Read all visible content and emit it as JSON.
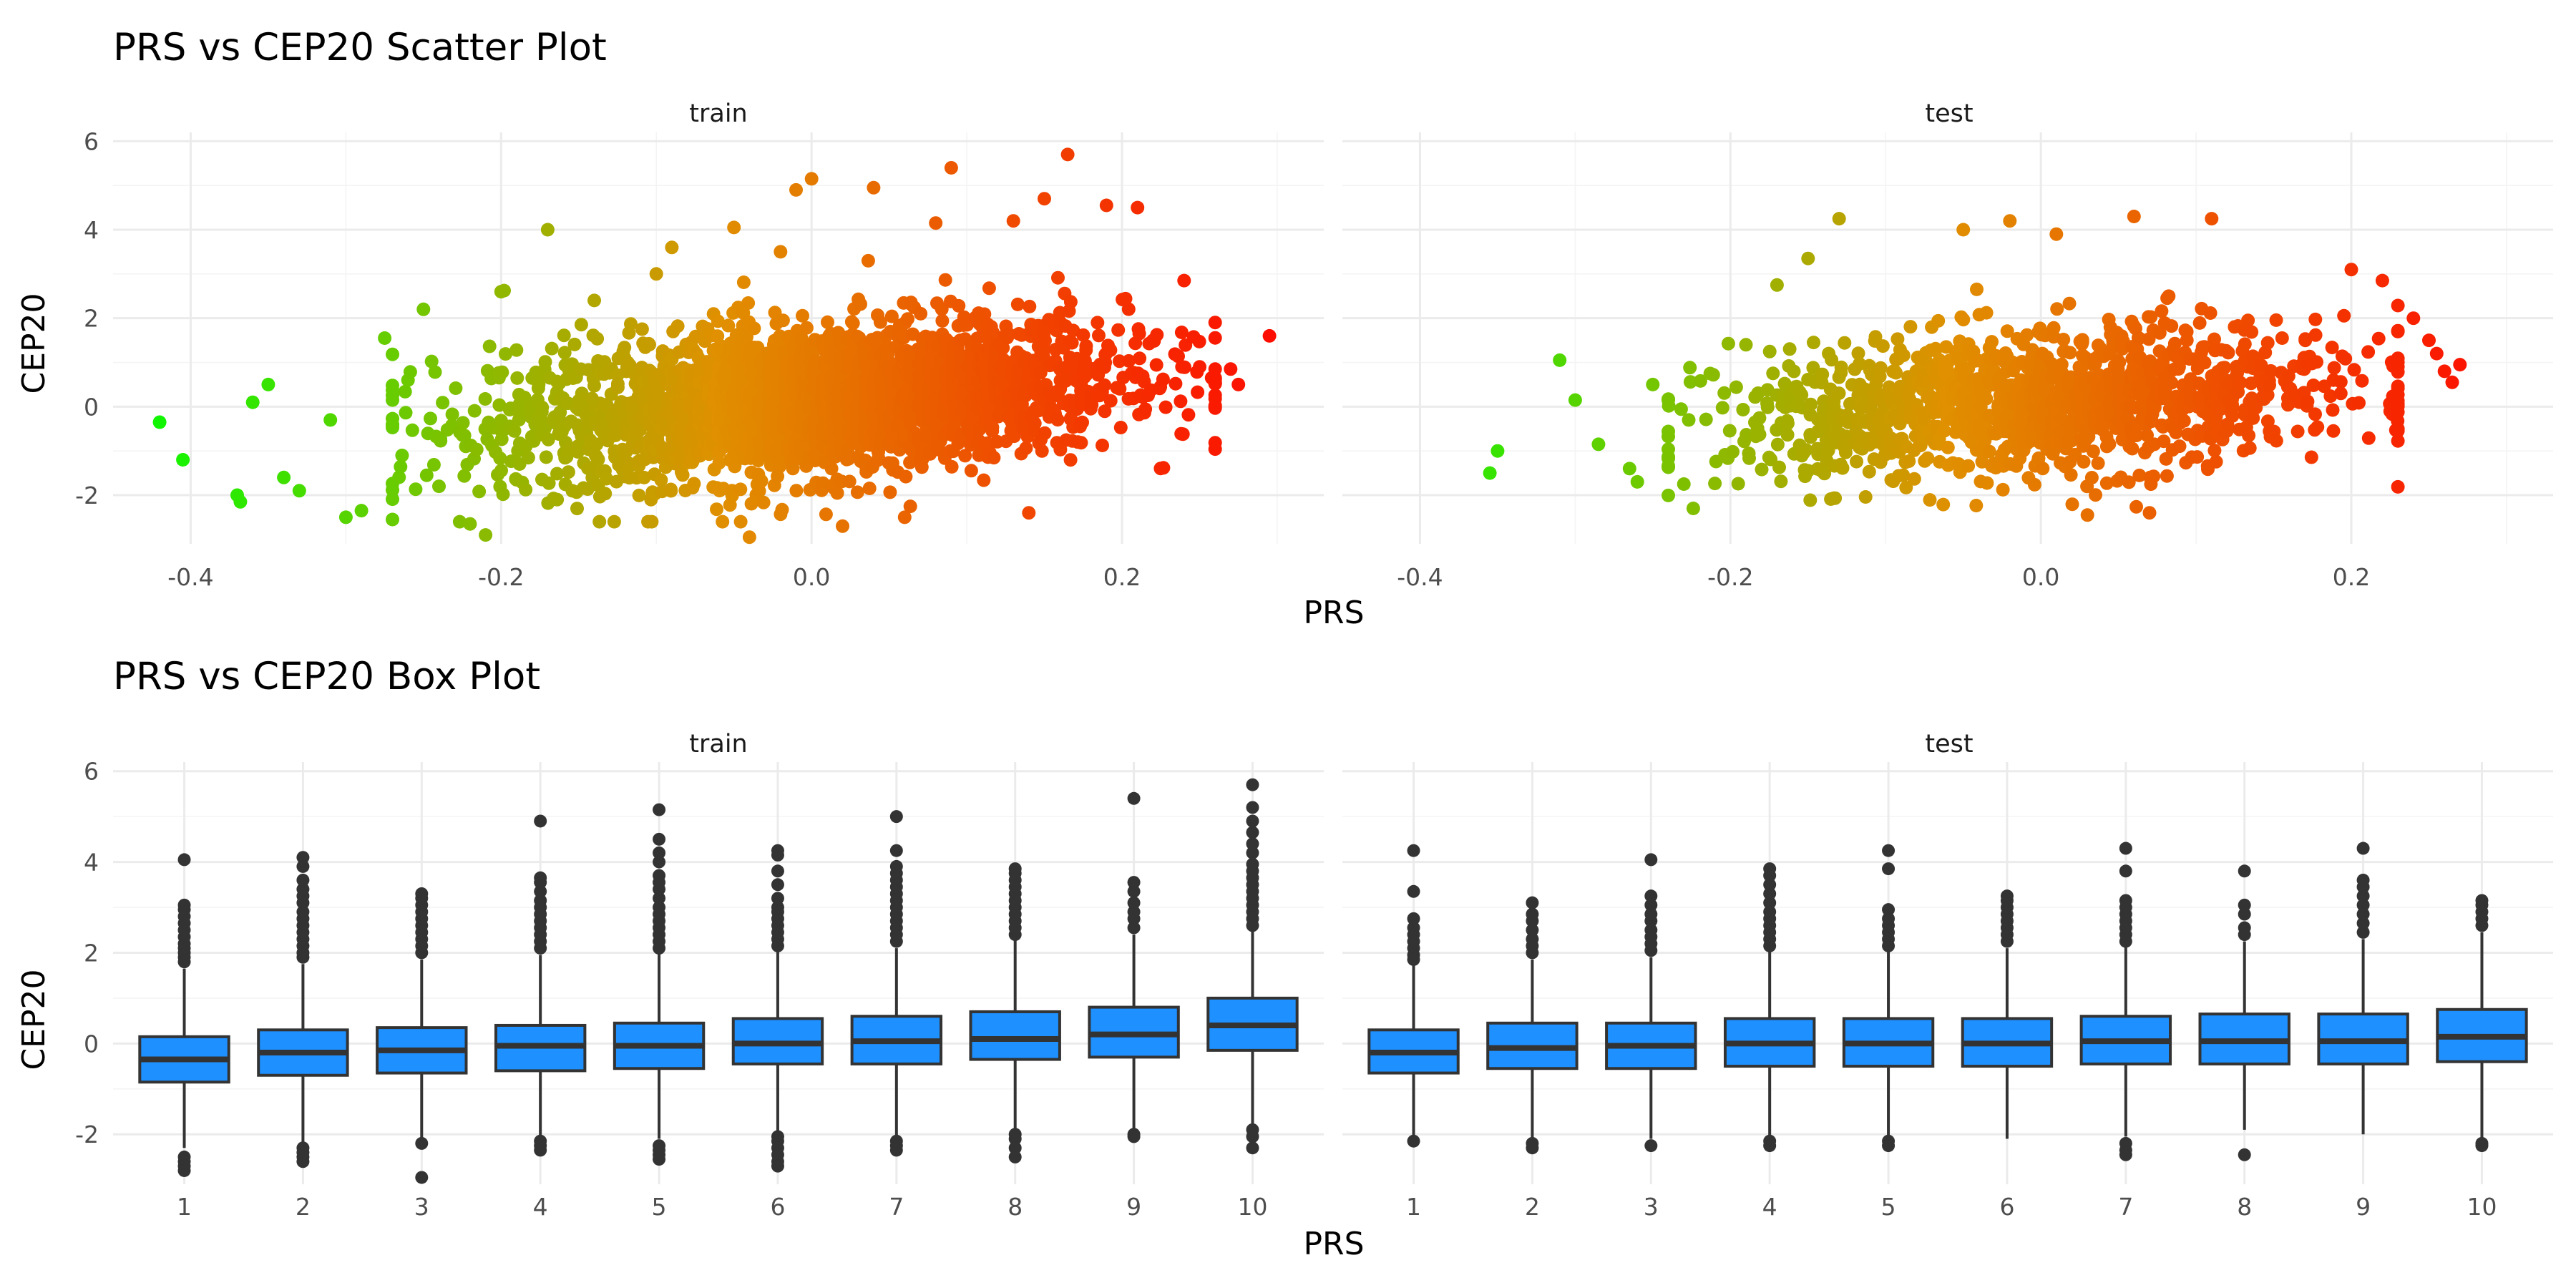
{
  "chart_data": [
    {
      "type": "scatter",
      "title": "PRS vs CEP20 Scatter Plot",
      "xlabel": "PRS",
      "ylabel": "CEP20",
      "xlim": [
        -0.45,
        0.33
      ],
      "ylim": [
        -3.1,
        6.2
      ],
      "x_ticks": [
        "-0.4",
        "-0.2",
        "0.0",
        "0.2"
      ],
      "x_tick_values": [
        -0.4,
        -0.2,
        0.0,
        0.2
      ],
      "y_ticks": [
        "-2",
        "0",
        "2",
        "4",
        "6"
      ],
      "y_tick_values": [
        -2,
        0,
        2,
        4,
        6
      ],
      "grid": true,
      "color_scale": {
        "variable": "PRS",
        "low": "#00ff00",
        "mid": "#e09000",
        "high": "#ff0000"
      },
      "facets": [
        {
          "label": "train",
          "cloud": {
            "n": 2600,
            "x_mean": 0.0,
            "x_sd": 0.1,
            "x_min": -0.27,
            "x_max": 0.26,
            "y_intercept": 0.15,
            "y_slope": 2.8,
            "y_sd": 0.85,
            "y_min": -2.6,
            "y_max": 3.8
          },
          "points": [
            [
              -0.42,
              -0.35
            ],
            [
              -0.405,
              -1.2
            ],
            [
              -0.37,
              -2.0
            ],
            [
              -0.368,
              -2.15
            ],
            [
              -0.36,
              0.1
            ],
            [
              -0.35,
              0.5
            ],
            [
              -0.34,
              -1.6
            ],
            [
              -0.33,
              -1.9
            ],
            [
              -0.31,
              -0.3
            ],
            [
              -0.3,
              -2.5
            ],
            [
              -0.29,
              -2.35
            ],
            [
              -0.275,
              1.55
            ],
            [
              -0.27,
              -2.55
            ],
            [
              -0.26,
              0.6
            ],
            [
              -0.25,
              2.2
            ],
            [
              -0.24,
              -1.8
            ],
            [
              -0.22,
              -2.65
            ],
            [
              -0.21,
              -2.9
            ],
            [
              -0.2,
              2.6
            ],
            [
              -0.17,
              4.0
            ],
            [
              -0.14,
              2.4
            ],
            [
              -0.1,
              3.0
            ],
            [
              -0.09,
              3.6
            ],
            [
              -0.05,
              4.05
            ],
            [
              -0.04,
              -2.95
            ],
            [
              -0.02,
              3.5
            ],
            [
              -0.01,
              4.9
            ],
            [
              0.0,
              5.15
            ],
            [
              0.02,
              -2.7
            ],
            [
              0.04,
              4.95
            ],
            [
              0.06,
              -2.5
            ],
            [
              0.08,
              4.15
            ],
            [
              0.09,
              5.4
            ],
            [
              0.13,
              4.2
            ],
            [
              0.14,
              -2.4
            ],
            [
              0.15,
              4.7
            ],
            [
              0.165,
              5.7
            ],
            [
              0.19,
              4.55
            ],
            [
              0.21,
              4.5
            ],
            [
              0.22,
              1.5
            ],
            [
              0.24,
              2.85
            ],
            [
              0.25,
              0.9
            ],
            [
              0.26,
              0.55
            ],
            [
              0.27,
              0.85
            ],
            [
              0.275,
              0.5
            ],
            [
              0.295,
              1.6
            ]
          ]
        },
        {
          "label": "test",
          "cloud": {
            "n": 1300,
            "x_mean": 0.0,
            "x_sd": 0.1,
            "x_min": -0.24,
            "x_max": 0.23,
            "y_intercept": 0.1,
            "y_slope": 2.2,
            "y_sd": 0.8,
            "y_min": -2.3,
            "y_max": 3.4
          },
          "points": [
            [
              -0.355,
              -1.5
            ],
            [
              -0.35,
              -1.0
            ],
            [
              -0.31,
              1.05
            ],
            [
              -0.3,
              0.15
            ],
            [
              -0.285,
              -0.85
            ],
            [
              -0.265,
              -1.4
            ],
            [
              -0.26,
              -1.7
            ],
            [
              -0.25,
              0.5
            ],
            [
              -0.23,
              -1.75
            ],
            [
              -0.19,
              1.4
            ],
            [
              -0.17,
              2.75
            ],
            [
              -0.15,
              3.35
            ],
            [
              -0.13,
              4.25
            ],
            [
              -0.05,
              4.0
            ],
            [
              -0.02,
              4.2
            ],
            [
              0.01,
              3.9
            ],
            [
              0.03,
              -2.45
            ],
            [
              0.06,
              4.3
            ],
            [
              0.07,
              -2.4
            ],
            [
              0.11,
              4.25
            ],
            [
              0.2,
              3.1
            ],
            [
              0.22,
              2.85
            ],
            [
              0.24,
              2.0
            ],
            [
              0.25,
              1.5
            ],
            [
              0.255,
              1.2
            ],
            [
              0.26,
              0.8
            ],
            [
              0.265,
              0.55
            ],
            [
              0.27,
              0.95
            ]
          ]
        }
      ]
    },
    {
      "type": "box",
      "title": "PRS vs CEP20 Box Plot",
      "xlabel": "PRS",
      "ylabel": "CEP20",
      "categories": [
        "1",
        "2",
        "3",
        "4",
        "5",
        "6",
        "7",
        "8",
        "9",
        "10"
      ],
      "ylim": [
        -3.1,
        6.2
      ],
      "y_ticks": [
        "-2",
        "0",
        "2",
        "4",
        "6"
      ],
      "y_tick_values": [
        -2,
        0,
        2,
        4,
        6
      ],
      "grid": true,
      "box_color": "#1e90ff",
      "facets": [
        {
          "label": "train",
          "boxes": [
            {
              "q1": -0.85,
              "median": -0.35,
              "q3": 0.15,
              "lower": -2.3,
              "upper": 1.65,
              "outliers": [
                -2.5,
                -2.6,
                -2.7,
                -2.8,
                1.8,
                1.9,
                2.0,
                2.1,
                2.2,
                2.35,
                2.5,
                2.65,
                2.8,
                2.95,
                3.05,
                4.05
              ]
            },
            {
              "q1": -0.7,
              "median": -0.2,
              "q3": 0.3,
              "lower": -2.2,
              "upper": 1.75,
              "outliers": [
                -2.3,
                -2.4,
                -2.5,
                -2.6,
                1.9,
                2.0,
                2.15,
                2.3,
                2.45,
                2.6,
                2.75,
                2.9,
                3.1,
                3.25,
                3.4,
                3.6,
                3.9,
                4.1
              ]
            },
            {
              "q1": -0.65,
              "median": -0.15,
              "q3": 0.35,
              "lower": -2.15,
              "upper": 1.85,
              "outliers": [
                -2.2,
                -2.95,
                2.0,
                2.15,
                2.3,
                2.45,
                2.6,
                2.75,
                2.9,
                3.05,
                3.2,
                3.3
              ]
            },
            {
              "q1": -0.6,
              "median": -0.05,
              "q3": 0.4,
              "lower": -2.05,
              "upper": 1.95,
              "outliers": [
                -2.15,
                -2.25,
                -2.35,
                2.1,
                2.25,
                2.4,
                2.55,
                2.7,
                2.85,
                3.0,
                3.15,
                3.35,
                3.55,
                3.65,
                4.9
              ]
            },
            {
              "q1": -0.55,
              "median": -0.05,
              "q3": 0.45,
              "lower": -2.1,
              "upper": 2.0,
              "outliers": [
                -2.25,
                -2.35,
                -2.45,
                -2.55,
                2.1,
                2.25,
                2.4,
                2.55,
                2.7,
                2.85,
                3.0,
                3.2,
                3.4,
                3.55,
                3.7,
                4.0,
                4.2,
                4.5,
                5.15
              ]
            },
            {
              "q1": -0.45,
              "median": 0.0,
              "q3": 0.55,
              "lower": -1.95,
              "upper": 2.05,
              "outliers": [
                -2.05,
                -2.15,
                -2.3,
                -2.45,
                -2.6,
                -2.7,
                2.15,
                2.3,
                2.45,
                2.6,
                2.75,
                2.9,
                3.0,
                3.2,
                3.5,
                3.8,
                4.15,
                4.25
              ]
            },
            {
              "q1": -0.45,
              "median": 0.05,
              "q3": 0.6,
              "lower": -2.05,
              "upper": 2.1,
              "outliers": [
                -2.15,
                -2.25,
                -2.35,
                2.25,
                2.4,
                2.55,
                2.7,
                2.85,
                3.0,
                3.15,
                3.3,
                3.45,
                3.6,
                3.75,
                3.9,
                4.25,
                5.0
              ]
            },
            {
              "q1": -0.35,
              "median": 0.1,
              "q3": 0.7,
              "lower": -1.9,
              "upper": 2.3,
              "outliers": [
                -2.0,
                -2.1,
                -2.3,
                -2.5,
                2.4,
                2.55,
                2.7,
                2.85,
                3.0,
                3.15,
                3.3,
                3.45,
                3.6,
                3.75,
                3.85
              ]
            },
            {
              "q1": -0.3,
              "median": 0.2,
              "q3": 0.8,
              "lower": -1.9,
              "upper": 2.4,
              "outliers": [
                -2.0,
                -2.05,
                2.55,
                2.75,
                2.9,
                3.1,
                3.35,
                3.55,
                5.4
              ]
            },
            {
              "q1": -0.15,
              "median": 0.4,
              "q3": 1.0,
              "lower": -1.8,
              "upper": 2.5,
              "outliers": [
                -1.9,
                -2.05,
                -2.3,
                2.6,
                2.75,
                2.9,
                3.05,
                3.2,
                3.35,
                3.5,
                3.65,
                3.8,
                3.95,
                4.2,
                4.4,
                4.65,
                4.9,
                5.2,
                5.7
              ]
            }
          ]
        },
        {
          "label": "test",
          "boxes": [
            {
              "q1": -0.65,
              "median": -0.2,
              "q3": 0.3,
              "lower": -2.05,
              "upper": 1.75,
              "outliers": [
                -2.15,
                1.85,
                1.95,
                2.1,
                2.25,
                2.4,
                2.55,
                2.75,
                3.35,
                4.25
              ]
            },
            {
              "q1": -0.55,
              "median": -0.1,
              "q3": 0.45,
              "lower": -2.1,
              "upper": 1.85,
              "outliers": [
                -2.2,
                -2.3,
                2.0,
                2.15,
                2.3,
                2.5,
                2.7,
                2.85,
                3.1
              ]
            },
            {
              "q1": -0.55,
              "median": -0.05,
              "q3": 0.45,
              "lower": -2.1,
              "upper": 1.9,
              "outliers": [
                -2.25,
                2.05,
                2.2,
                2.35,
                2.5,
                2.7,
                2.85,
                3.05,
                3.25,
                4.05
              ]
            },
            {
              "q1": -0.5,
              "median": 0.0,
              "q3": 0.55,
              "lower": -2.05,
              "upper": 2.05,
              "outliers": [
                -2.15,
                -2.25,
                2.15,
                2.3,
                2.45,
                2.6,
                2.75,
                2.9,
                3.1,
                3.3,
                3.5,
                3.7,
                3.85
              ]
            },
            {
              "q1": -0.5,
              "median": 0.0,
              "q3": 0.55,
              "lower": -2.05,
              "upper": 2.05,
              "outliers": [
                -2.15,
                -2.25,
                2.15,
                2.3,
                2.45,
                2.6,
                2.75,
                2.95,
                3.85,
                4.25
              ]
            },
            {
              "q1": -0.5,
              "median": 0.0,
              "q3": 0.55,
              "lower": -2.1,
              "upper": 2.1,
              "outliers": [
                2.25,
                2.4,
                2.55,
                2.7,
                2.85,
                3.0,
                3.15,
                3.25
              ]
            },
            {
              "q1": -0.45,
              "median": 0.05,
              "q3": 0.6,
              "lower": -2.05,
              "upper": 2.15,
              "outliers": [
                -2.2,
                -2.35,
                -2.45,
                2.25,
                2.4,
                2.55,
                2.7,
                2.85,
                3.0,
                3.15,
                3.8,
                4.3
              ]
            },
            {
              "q1": -0.45,
              "median": 0.05,
              "q3": 0.65,
              "lower": -1.9,
              "upper": 2.25,
              "outliers": [
                -2.45,
                2.4,
                2.55,
                2.85,
                3.05,
                3.8
              ]
            },
            {
              "q1": -0.45,
              "median": 0.05,
              "q3": 0.65,
              "lower": -2.0,
              "upper": 2.3,
              "outliers": [
                2.45,
                2.65,
                2.85,
                3.05,
                3.25,
                3.45,
                3.6,
                4.3
              ]
            },
            {
              "q1": -0.4,
              "median": 0.15,
              "q3": 0.75,
              "lower": -2.1,
              "upper": 2.45,
              "outliers": [
                -2.2,
                -2.25,
                2.6,
                2.75,
                2.9,
                3.05,
                3.15
              ]
            }
          ]
        }
      ]
    }
  ]
}
